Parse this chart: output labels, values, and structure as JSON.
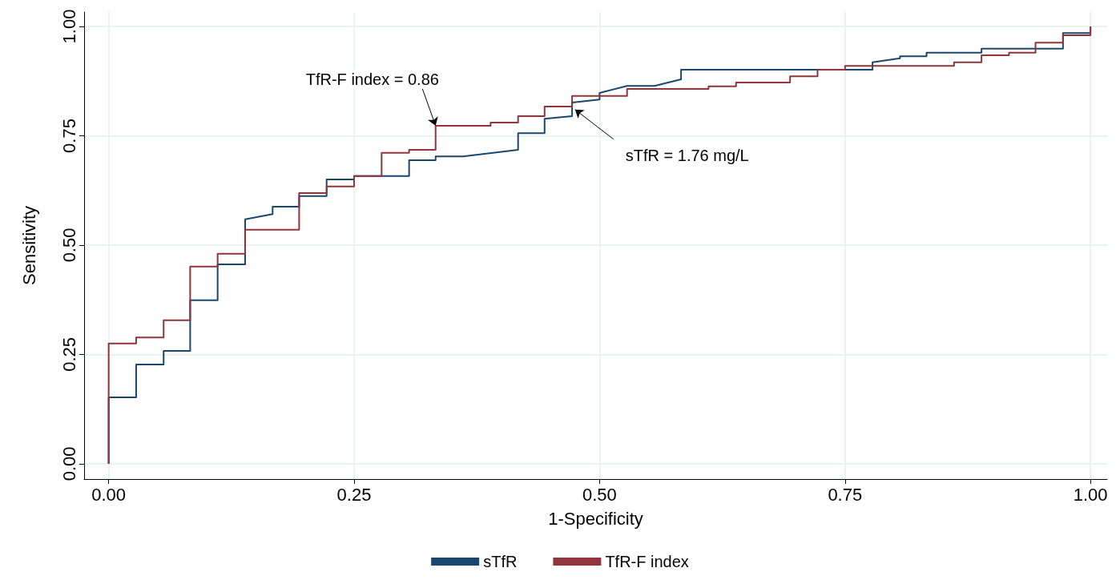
{
  "chart_data": {
    "type": "line",
    "xlabel": "1-Specificity",
    "ylabel": "Sensitivity",
    "xlim": [
      -0.025,
      1.017
    ],
    "ylim": [
      -0.035,
      1.033
    ],
    "xticks": [
      {
        "value": 0,
        "label": "0.00"
      },
      {
        "value": 0.25,
        "label": "0.25"
      },
      {
        "value": 0.5,
        "label": "0.50"
      },
      {
        "value": 0.75,
        "label": "0.75"
      },
      {
        "value": 1,
        "label": "1.00"
      }
    ],
    "yticks": [
      {
        "value": 0,
        "label": "0.00"
      },
      {
        "value": 0.25,
        "label": "0.25"
      },
      {
        "value": 0.5,
        "label": "0.50"
      },
      {
        "value": 0.75,
        "label": "0.75"
      },
      {
        "value": 1,
        "label": "1.00"
      }
    ],
    "grid": true,
    "legend": "bottom",
    "annotations": [
      {
        "text": "TfR-F index = 0.86",
        "x": 0.333,
        "y": 0.773
      },
      {
        "text": "sTfR = 1.76 mg/L",
        "x": 0.475,
        "y": 0.81
      }
    ],
    "series": [
      {
        "name": "sTfR",
        "color": "#1a476f",
        "x": [
          0,
          0,
          0.028,
          0.028,
          0.056,
          0.056,
          0.083,
          0.083,
          0.111,
          0.111,
          0.139,
          0.139,
          0.167,
          0.167,
          0.194,
          0.194,
          0.222,
          0.222,
          0.25,
          0.25,
          0.306,
          0.306,
          0.333,
          0.333,
          0.361,
          0.417,
          0.417,
          0.444,
          0.444,
          0.472,
          0.472,
          0.5,
          0.5,
          0.528,
          0.556,
          0.583,
          0.583,
          0.778,
          0.778,
          0.806,
          0.806,
          0.833,
          0.833,
          0.889,
          0.889,
          0.972,
          0.972,
          1,
          1
        ],
        "values": [
          0,
          0.152,
          0.152,
          0.227,
          0.227,
          0.258,
          0.258,
          0.374,
          0.374,
          0.456,
          0.456,
          0.559,
          0.571,
          0.588,
          0.588,
          0.612,
          0.612,
          0.65,
          0.65,
          0.658,
          0.658,
          0.694,
          0.694,
          0.703,
          0.703,
          0.718,
          0.756,
          0.756,
          0.789,
          0.795,
          0.826,
          0.833,
          0.848,
          0.864,
          0.864,
          0.879,
          0.901,
          0.901,
          0.918,
          0.927,
          0.932,
          0.932,
          0.94,
          0.94,
          0.949,
          0.949,
          0.985,
          0.985,
          1
        ]
      },
      {
        "name": "TfR-F index",
        "color": "#90353b",
        "x": [
          0,
          0,
          0.028,
          0.028,
          0.056,
          0.056,
          0.083,
          0.083,
          0.111,
          0.111,
          0.139,
          0.139,
          0.194,
          0.194,
          0.222,
          0.222,
          0.25,
          0.25,
          0.278,
          0.278,
          0.306,
          0.306,
          0.333,
          0.333,
          0.389,
          0.389,
          0.417,
          0.417,
          0.444,
          0.444,
          0.472,
          0.472,
          0.528,
          0.528,
          0.611,
          0.611,
          0.639,
          0.639,
          0.694,
          0.694,
          0.722,
          0.722,
          0.75,
          0.75,
          0.861,
          0.861,
          0.889,
          0.889,
          0.917,
          0.917,
          0.944,
          0.944,
          0.972,
          0.972,
          1,
          1
        ],
        "values": [
          0,
          0.275,
          0.275,
          0.289,
          0.289,
          0.328,
          0.328,
          0.451,
          0.451,
          0.48,
          0.48,
          0.535,
          0.535,
          0.619,
          0.619,
          0.634,
          0.634,
          0.658,
          0.658,
          0.711,
          0.711,
          0.718,
          0.718,
          0.773,
          0.773,
          0.78,
          0.78,
          0.795,
          0.795,
          0.817,
          0.817,
          0.841,
          0.841,
          0.857,
          0.857,
          0.863,
          0.863,
          0.872,
          0.872,
          0.886,
          0.886,
          0.901,
          0.901,
          0.91,
          0.91,
          0.918,
          0.918,
          0.934,
          0.934,
          0.94,
          0.94,
          0.963,
          0.963,
          0.98,
          0.98,
          1
        ]
      }
    ]
  }
}
